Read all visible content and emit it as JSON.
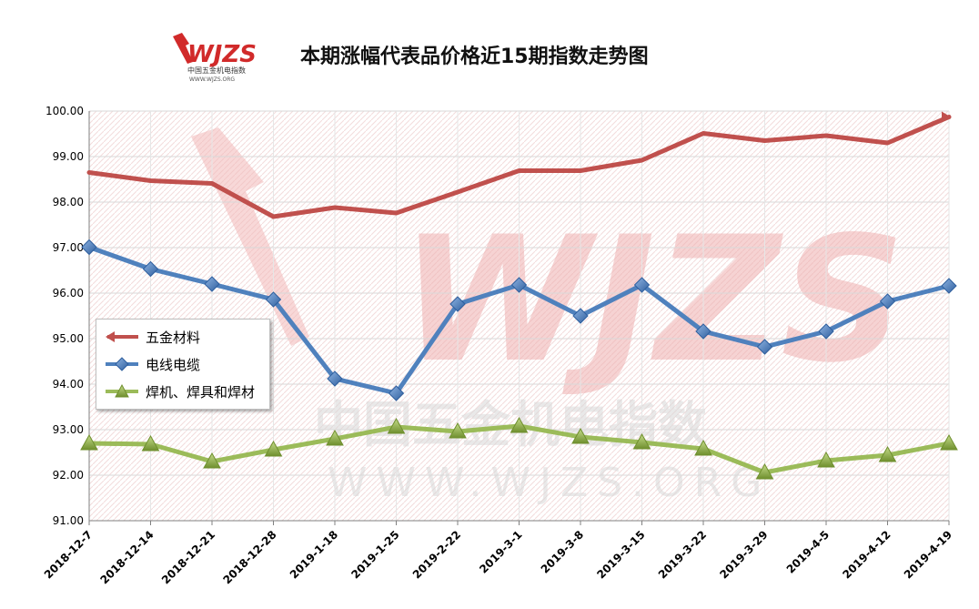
{
  "title": "本期涨幅代表品价格近15期指数走势图",
  "logo": {
    "brand": "WJZS",
    "cn_name": "中国五金机电指数",
    "url": "WWW.WJZS.ORG"
  },
  "watermark": {
    "brand": "WJZS",
    "cn_name": "中国五金机电指数",
    "url": "WWW.WJZS.ORG"
  },
  "colors": {
    "series1": "#c0504d",
    "series2": "#4f81bd",
    "series3": "#9bbb59",
    "grid": "#d9d9d9",
    "axis_text": "#000000"
  },
  "legend": {
    "placement": "left-center"
  },
  "chart_data": {
    "type": "line",
    "title": "本期涨幅代表品价格近15期指数走势图",
    "categories": [
      "2018-12-7",
      "2018-12-14",
      "2018-12-21",
      "2018-12-28",
      "2019-1-18",
      "2019-1-25",
      "2019-2-22",
      "2019-3-1",
      "2019-3-8",
      "2019-3-15",
      "2019-3-22",
      "2019-3-29",
      "2019-4-5",
      "2019-4-12",
      "2019-4-19"
    ],
    "ylim": [
      91.0,
      100.0
    ],
    "yticks": [
      "91.00",
      "92.00",
      "93.00",
      "94.00",
      "95.00",
      "96.00",
      "97.00",
      "98.00",
      "99.00",
      "100.00"
    ],
    "grid": true,
    "series": [
      {
        "name": "五金材料",
        "marker": "arrow",
        "color": "#c0504d",
        "values": [
          98.65,
          98.47,
          98.41,
          97.68,
          97.88,
          97.76,
          98.22,
          98.69,
          98.69,
          98.92,
          99.51,
          99.35,
          99.46,
          99.3,
          99.87
        ]
      },
      {
        "name": "电线电缆",
        "marker": "diamond",
        "color": "#4f81bd",
        "values": [
          97.01,
          96.53,
          96.2,
          95.86,
          94.12,
          93.8,
          95.76,
          96.18,
          95.5,
          96.18,
          95.16,
          94.82,
          95.16,
          95.82,
          96.16
        ]
      },
      {
        "name": "焊机、焊具和焊材",
        "marker": "triangle",
        "color": "#9bbb59",
        "values": [
          92.7,
          92.68,
          92.3,
          92.56,
          92.8,
          93.06,
          92.96,
          93.08,
          92.84,
          92.72,
          92.58,
          92.06,
          92.32,
          92.44,
          92.7
        ]
      }
    ]
  }
}
